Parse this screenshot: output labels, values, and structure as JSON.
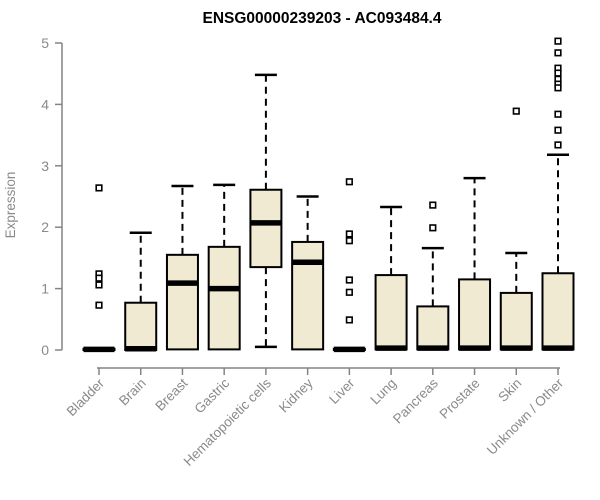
{
  "colors": {
    "background": "#ffffff",
    "box_fill": "#f1ead3",
    "box_stroke": "#000000",
    "median": "#000000",
    "whisker": "#000000",
    "outlier_stroke": "#000000",
    "axis": "#848484",
    "tick_label": "#8a8a8a",
    "title": "#000000"
  },
  "chart_data": {
    "type": "boxplot",
    "title": "ENSG00000239203 - AC093484.4",
    "ylabel": "Expression",
    "xlabel": "",
    "ylim": [
      0,
      5
    ],
    "yticks": [
      0,
      1,
      2,
      3,
      4,
      5
    ],
    "grid": false,
    "legend": false,
    "categories": [
      "Bladder",
      "Brain",
      "Breast",
      "Gastric",
      "Hematopoietic cells",
      "Kidney",
      "Liver",
      "Lung",
      "Pancreas",
      "Prostate",
      "Skin",
      "Unknown / Other"
    ],
    "series": [
      {
        "name": "Bladder",
        "whisker_low": 0,
        "q1": 0,
        "median": 0.01,
        "q3": 0.02,
        "whisker_high": 0.02,
        "outliers": [
          2.64,
          1.24,
          1.17,
          1.06,
          0.73
        ]
      },
      {
        "name": "Brain",
        "whisker_low": 0,
        "q1": 0,
        "median": 0.02,
        "q3": 0.77,
        "whisker_high": 1.91,
        "outliers": []
      },
      {
        "name": "Breast",
        "whisker_low": 0,
        "q1": 0.01,
        "median": 1.09,
        "q3": 1.55,
        "whisker_high": 2.67,
        "outliers": []
      },
      {
        "name": "Gastric",
        "whisker_low": 0,
        "q1": 0.01,
        "median": 1.0,
        "q3": 1.68,
        "whisker_high": 2.69,
        "outliers": []
      },
      {
        "name": "Hematopoietic cells",
        "whisker_low": 0.05,
        "q1": 1.35,
        "median": 2.07,
        "q3": 2.61,
        "whisker_high": 4.48,
        "outliers": []
      },
      {
        "name": "Kidney",
        "whisker_low": 0,
        "q1": 0.01,
        "median": 1.43,
        "q3": 1.76,
        "whisker_high": 2.5,
        "outliers": []
      },
      {
        "name": "Liver",
        "whisker_low": 0,
        "q1": 0,
        "median": 0.01,
        "q3": 0.02,
        "whisker_high": 0.02,
        "outliers": [
          2.74,
          1.89,
          1.78,
          1.14,
          0.94,
          0.49
        ]
      },
      {
        "name": "Lung",
        "whisker_low": 0,
        "q1": 0.01,
        "median": 0.03,
        "q3": 1.22,
        "whisker_high": 2.33,
        "outliers": []
      },
      {
        "name": "Pancreas",
        "whisker_low": 0,
        "q1": 0.01,
        "median": 0.03,
        "q3": 0.71,
        "whisker_high": 1.66,
        "outliers": [
          2.36,
          1.99
        ]
      },
      {
        "name": "Prostate",
        "whisker_low": 0,
        "q1": 0.01,
        "median": 0.03,
        "q3": 1.15,
        "whisker_high": 2.8,
        "outliers": []
      },
      {
        "name": "Skin",
        "whisker_low": 0,
        "q1": 0.01,
        "median": 0.03,
        "q3": 0.93,
        "whisker_high": 1.58,
        "outliers": [
          3.89
        ]
      },
      {
        "name": "Unknown / Other",
        "whisker_low": 0,
        "q1": 0.01,
        "median": 0.03,
        "q3": 1.25,
        "whisker_high": 3.18,
        "outliers": [
          5.03,
          4.84,
          4.59,
          4.51,
          4.41,
          4.33,
          4.27,
          3.84,
          3.58,
          3.34
        ]
      }
    ]
  }
}
